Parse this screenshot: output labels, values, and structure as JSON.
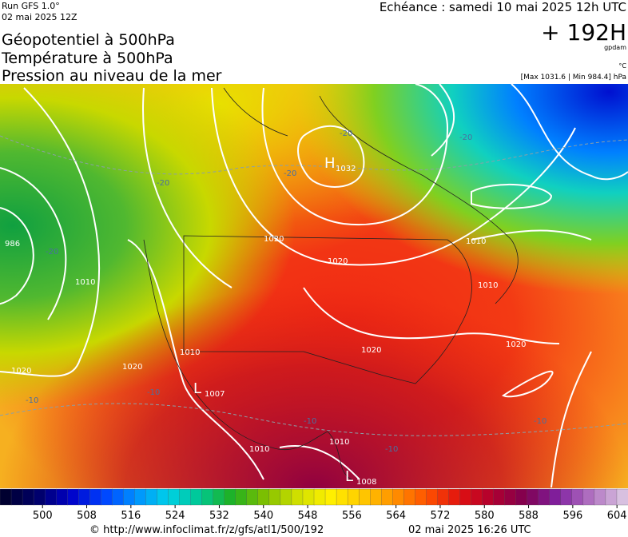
{
  "header": {
    "run": "Run GFS 1.0°",
    "run_date": "02 mai 2025 12Z",
    "titles": [
      "Géopotentiel à 500hPa",
      "Température à 500hPa",
      "Pression au niveau de la mer"
    ],
    "valid": "Echéance : samedi 10 mai 2025 12h UTC",
    "lead": "+ 192H",
    "unit_geo": "gpdam",
    "unit_temp": "°C",
    "pressure_range": "[Max 1031.6 | Min 984.4] hPa"
  },
  "map": {
    "centers": [
      {
        "letter": "H",
        "value": "1032"
      },
      {
        "letter": "L",
        "value": "1007"
      },
      {
        "letter": "L",
        "value": "1008"
      }
    ],
    "labels": [
      "986",
      "1020",
      "1010",
      "1020",
      "1020",
      "1010",
      "1020",
      "1020",
      "1010",
      "1020",
      "1010",
      "1010",
      "1010",
      "-20",
      "-20",
      "-20",
      "-20",
      "-20",
      "-10",
      "-10",
      "-10",
      "-10",
      "-10"
    ]
  },
  "colorbar": {
    "range": [
      492.3,
      606
    ],
    "ticks": [
      500,
      508,
      516,
      524,
      532,
      540,
      548,
      556,
      564,
      572,
      580,
      588,
      596,
      604
    ],
    "colors": [
      "#000030",
      "#00006a",
      "#0000c8",
      "#0040ff",
      "#0090ff",
      "#00d0e8",
      "#00c890",
      "#20b020",
      "#80c000",
      "#d0e000",
      "#fff000",
      "#ffc800",
      "#ff9000",
      "#ff5000",
      "#e01010",
      "#b00030",
      "#800050",
      "#8020a0",
      "#b070c0",
      "#d8c0e0"
    ]
  },
  "footer": {
    "url": "© http://www.infoclimat.fr/z/gfs/atl1/500/192",
    "generated": "02 mai 2025 16:26 UTC"
  }
}
